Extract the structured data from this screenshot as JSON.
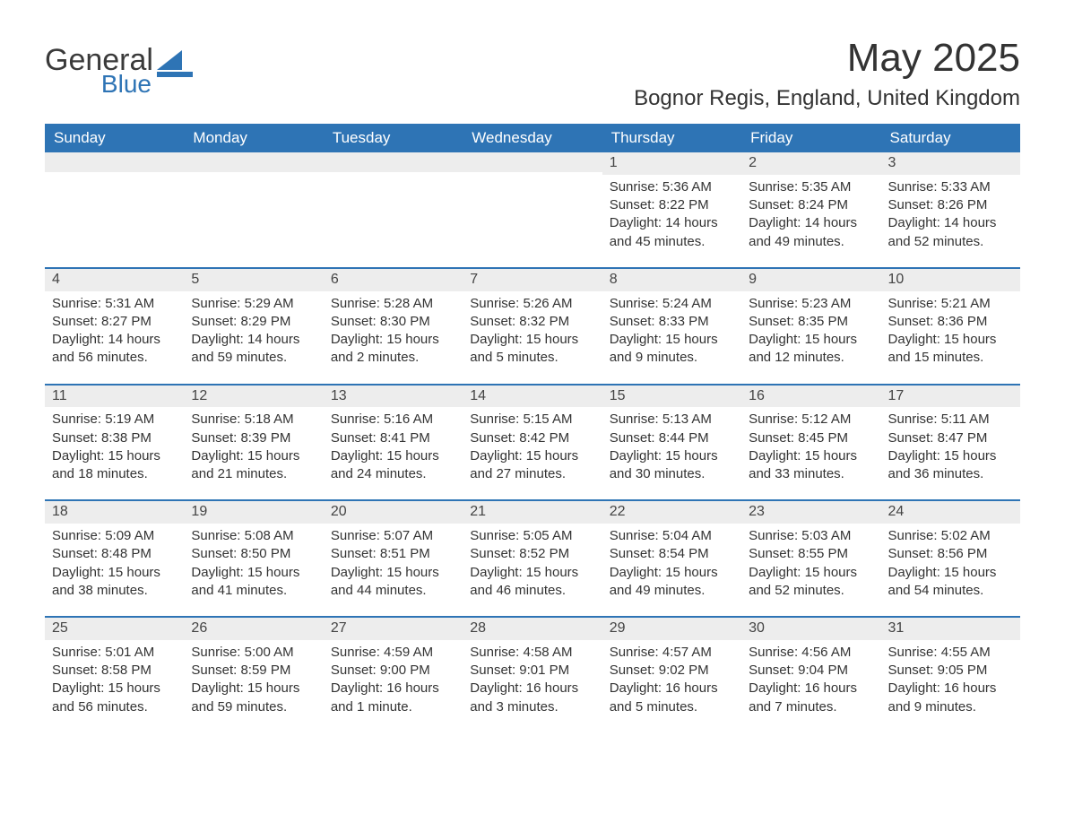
{
  "brand": {
    "word1": "General",
    "word2": "Blue",
    "word1_color": "#3a3a3a",
    "word2_color": "#2e74b5",
    "mark_color": "#2e74b5"
  },
  "header": {
    "title": "May 2025",
    "subtitle": "Bognor Regis, England, United Kingdom"
  },
  "style": {
    "header_bg": "#2e74b5",
    "header_text": "#ffffff",
    "row_divider": "#2e74b5",
    "daynum_bg": "#ededed",
    "body_bg": "#ffffff",
    "text_color": "#333333",
    "font_family": "Segoe UI, Arial, Helvetica, sans-serif",
    "title_fontsize_pt": 33,
    "subtitle_fontsize_pt": 18,
    "dayheader_fontsize_pt": 13,
    "body_fontsize_pt": 11
  },
  "calendar": {
    "columns": [
      "Sunday",
      "Monday",
      "Tuesday",
      "Wednesday",
      "Thursday",
      "Friday",
      "Saturday"
    ],
    "weeks": [
      [
        {
          "day": "",
          "sunrise": "",
          "sunset": "",
          "daylight": ""
        },
        {
          "day": "",
          "sunrise": "",
          "sunset": "",
          "daylight": ""
        },
        {
          "day": "",
          "sunrise": "",
          "sunset": "",
          "daylight": ""
        },
        {
          "day": "",
          "sunrise": "",
          "sunset": "",
          "daylight": ""
        },
        {
          "day": "1",
          "sunrise": "Sunrise: 5:36 AM",
          "sunset": "Sunset: 8:22 PM",
          "daylight": "Daylight: 14 hours and 45 minutes."
        },
        {
          "day": "2",
          "sunrise": "Sunrise: 5:35 AM",
          "sunset": "Sunset: 8:24 PM",
          "daylight": "Daylight: 14 hours and 49 minutes."
        },
        {
          "day": "3",
          "sunrise": "Sunrise: 5:33 AM",
          "sunset": "Sunset: 8:26 PM",
          "daylight": "Daylight: 14 hours and 52 minutes."
        }
      ],
      [
        {
          "day": "4",
          "sunrise": "Sunrise: 5:31 AM",
          "sunset": "Sunset: 8:27 PM",
          "daylight": "Daylight: 14 hours and 56 minutes."
        },
        {
          "day": "5",
          "sunrise": "Sunrise: 5:29 AM",
          "sunset": "Sunset: 8:29 PM",
          "daylight": "Daylight: 14 hours and 59 minutes."
        },
        {
          "day": "6",
          "sunrise": "Sunrise: 5:28 AM",
          "sunset": "Sunset: 8:30 PM",
          "daylight": "Daylight: 15 hours and 2 minutes."
        },
        {
          "day": "7",
          "sunrise": "Sunrise: 5:26 AM",
          "sunset": "Sunset: 8:32 PM",
          "daylight": "Daylight: 15 hours and 5 minutes."
        },
        {
          "day": "8",
          "sunrise": "Sunrise: 5:24 AM",
          "sunset": "Sunset: 8:33 PM",
          "daylight": "Daylight: 15 hours and 9 minutes."
        },
        {
          "day": "9",
          "sunrise": "Sunrise: 5:23 AM",
          "sunset": "Sunset: 8:35 PM",
          "daylight": "Daylight: 15 hours and 12 minutes."
        },
        {
          "day": "10",
          "sunrise": "Sunrise: 5:21 AM",
          "sunset": "Sunset: 8:36 PM",
          "daylight": "Daylight: 15 hours and 15 minutes."
        }
      ],
      [
        {
          "day": "11",
          "sunrise": "Sunrise: 5:19 AM",
          "sunset": "Sunset: 8:38 PM",
          "daylight": "Daylight: 15 hours and 18 minutes."
        },
        {
          "day": "12",
          "sunrise": "Sunrise: 5:18 AM",
          "sunset": "Sunset: 8:39 PM",
          "daylight": "Daylight: 15 hours and 21 minutes."
        },
        {
          "day": "13",
          "sunrise": "Sunrise: 5:16 AM",
          "sunset": "Sunset: 8:41 PM",
          "daylight": "Daylight: 15 hours and 24 minutes."
        },
        {
          "day": "14",
          "sunrise": "Sunrise: 5:15 AM",
          "sunset": "Sunset: 8:42 PM",
          "daylight": "Daylight: 15 hours and 27 minutes."
        },
        {
          "day": "15",
          "sunrise": "Sunrise: 5:13 AM",
          "sunset": "Sunset: 8:44 PM",
          "daylight": "Daylight: 15 hours and 30 minutes."
        },
        {
          "day": "16",
          "sunrise": "Sunrise: 5:12 AM",
          "sunset": "Sunset: 8:45 PM",
          "daylight": "Daylight: 15 hours and 33 minutes."
        },
        {
          "day": "17",
          "sunrise": "Sunrise: 5:11 AM",
          "sunset": "Sunset: 8:47 PM",
          "daylight": "Daylight: 15 hours and 36 minutes."
        }
      ],
      [
        {
          "day": "18",
          "sunrise": "Sunrise: 5:09 AM",
          "sunset": "Sunset: 8:48 PM",
          "daylight": "Daylight: 15 hours and 38 minutes."
        },
        {
          "day": "19",
          "sunrise": "Sunrise: 5:08 AM",
          "sunset": "Sunset: 8:50 PM",
          "daylight": "Daylight: 15 hours and 41 minutes."
        },
        {
          "day": "20",
          "sunrise": "Sunrise: 5:07 AM",
          "sunset": "Sunset: 8:51 PM",
          "daylight": "Daylight: 15 hours and 44 minutes."
        },
        {
          "day": "21",
          "sunrise": "Sunrise: 5:05 AM",
          "sunset": "Sunset: 8:52 PM",
          "daylight": "Daylight: 15 hours and 46 minutes."
        },
        {
          "day": "22",
          "sunrise": "Sunrise: 5:04 AM",
          "sunset": "Sunset: 8:54 PM",
          "daylight": "Daylight: 15 hours and 49 minutes."
        },
        {
          "day": "23",
          "sunrise": "Sunrise: 5:03 AM",
          "sunset": "Sunset: 8:55 PM",
          "daylight": "Daylight: 15 hours and 52 minutes."
        },
        {
          "day": "24",
          "sunrise": "Sunrise: 5:02 AM",
          "sunset": "Sunset: 8:56 PM",
          "daylight": "Daylight: 15 hours and 54 minutes."
        }
      ],
      [
        {
          "day": "25",
          "sunrise": "Sunrise: 5:01 AM",
          "sunset": "Sunset: 8:58 PM",
          "daylight": "Daylight: 15 hours and 56 minutes."
        },
        {
          "day": "26",
          "sunrise": "Sunrise: 5:00 AM",
          "sunset": "Sunset: 8:59 PM",
          "daylight": "Daylight: 15 hours and 59 minutes."
        },
        {
          "day": "27",
          "sunrise": "Sunrise: 4:59 AM",
          "sunset": "Sunset: 9:00 PM",
          "daylight": "Daylight: 16 hours and 1 minute."
        },
        {
          "day": "28",
          "sunrise": "Sunrise: 4:58 AM",
          "sunset": "Sunset: 9:01 PM",
          "daylight": "Daylight: 16 hours and 3 minutes."
        },
        {
          "day": "29",
          "sunrise": "Sunrise: 4:57 AM",
          "sunset": "Sunset: 9:02 PM",
          "daylight": "Daylight: 16 hours and 5 minutes."
        },
        {
          "day": "30",
          "sunrise": "Sunrise: 4:56 AM",
          "sunset": "Sunset: 9:04 PM",
          "daylight": "Daylight: 16 hours and 7 minutes."
        },
        {
          "day": "31",
          "sunrise": "Sunrise: 4:55 AM",
          "sunset": "Sunset: 9:05 PM",
          "daylight": "Daylight: 16 hours and 9 minutes."
        }
      ]
    ]
  }
}
